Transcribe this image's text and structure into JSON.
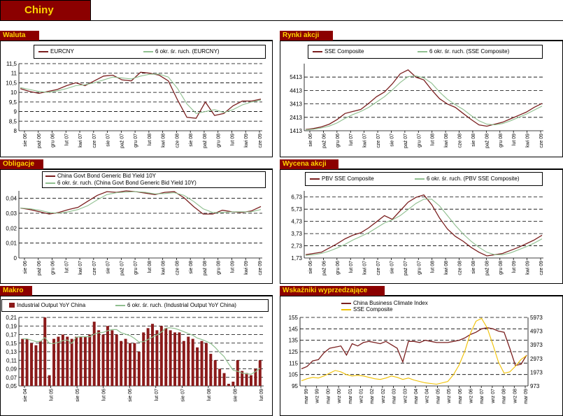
{
  "page": {
    "title": "Chiny"
  },
  "sections": {
    "waluta": "Waluta",
    "rynki": "Rynki akcji",
    "obligacje": "Obligacje",
    "wycena": "Wycena akcji",
    "makro": "Makro",
    "wskazniki": "Wskaźniki wyprzedzające"
  },
  "colors": {
    "brown": "#7a1f1f",
    "green": "#8fbf8f",
    "bar": "#8b1a1a",
    "yellow": "#f0c000",
    "header": "#8b0000",
    "header_text": "#ffd400"
  },
  "chart_data": [
    {
      "id": "waluta",
      "type": "line",
      "series": [
        {
          "name": "EURCNY",
          "values": [
            10.2,
            10.05,
            9.95,
            10.05,
            10.15,
            10.35,
            10.5,
            10.35,
            10.6,
            10.85,
            10.9,
            10.65,
            10.6,
            11.05,
            11.0,
            10.9,
            10.6,
            9.6,
            8.7,
            8.65,
            9.5,
            8.8,
            8.9,
            9.3,
            9.55,
            9.55,
            9.65
          ]
        },
        {
          "name": "6 okr. śr. ruch. (EURCNY)",
          "values": [
            10.25,
            10.15,
            10.05,
            10.0,
            10.08,
            10.2,
            10.35,
            10.4,
            10.5,
            10.65,
            10.8,
            10.75,
            10.7,
            10.85,
            10.95,
            10.95,
            10.8,
            10.2,
            9.4,
            8.9,
            9.0,
            9.1,
            8.95,
            9.1,
            9.35,
            9.5,
            9.6
          ]
        }
      ],
      "ylim": [
        8,
        11.5
      ],
      "yticks": [
        "8",
        "8,5",
        "9",
        "9,5",
        "10",
        "10,5",
        "11",
        "11,5"
      ],
      "xticks": [
        "sie 06",
        "paź 06",
        "gru 06",
        "lut 07",
        "kwi 07",
        "cze 07",
        "sie 07",
        "paź 07",
        "gru 07",
        "lut 08",
        "kwi 08",
        "cze 08",
        "sie 08",
        "paź 08",
        "gru 08",
        "lut 09",
        "kwi 09",
        "cze 09"
      ]
    },
    {
      "id": "rynki",
      "type": "line",
      "series": [
        {
          "name": "SSE Composite",
          "values": [
            1500,
            1580,
            1700,
            1900,
            2250,
            2700,
            2850,
            3000,
            3450,
            3950,
            4300,
            4900,
            5650,
            5950,
            5400,
            5200,
            4450,
            3800,
            3400,
            3150,
            2700,
            2250,
            1850,
            1750,
            1900,
            2050,
            2300,
            2550,
            2800,
            3150,
            3450
          ]
        },
        {
          "name": "6 okr. śr. ruch. (SSE Composite)",
          "values": [
            1480,
            1530,
            1620,
            1760,
            2000,
            2330,
            2620,
            2850,
            3150,
            3550,
            3950,
            4450,
            5000,
            5450,
            5500,
            5350,
            4950,
            4300,
            3750,
            3350,
            3000,
            2550,
            2150,
            1900,
            1850,
            1950,
            2150,
            2400,
            2650,
            2950,
            3250
          ]
        }
      ],
      "ylim": [
        1413,
        6413
      ],
      "yticks": [
        "1413",
        "2413",
        "3413",
        "4413",
        "5413"
      ],
      "xticks": [
        "sie 06",
        "paź 06",
        "gru 06",
        "lut 07",
        "kwi 07",
        "cze 07",
        "sie 07",
        "paź 07",
        "gru 07",
        "lut 08",
        "kwi 08",
        "cze 08",
        "sie 08",
        "paź 08",
        "gru 08",
        "lut 09",
        "kwi 09",
        "cze 09"
      ]
    },
    {
      "id": "obligacje",
      "type": "line",
      "series": [
        {
          "name": "China Govt Bond Generic Bid Yield 10Y",
          "values": [
            0.0335,
            0.0325,
            0.031,
            0.0295,
            0.0305,
            0.0325,
            0.034,
            0.038,
            0.042,
            0.0445,
            0.044,
            0.045,
            0.0445,
            0.0435,
            0.0425,
            0.044,
            0.0445,
            0.0405,
            0.0345,
            0.0295,
            0.0295,
            0.032,
            0.031,
            0.0305,
            0.0315,
            0.0345
          ]
        },
        {
          "name": "6 okr. śr. ruch. (China Govt Bond Generic Bid Yield 10Y)",
          "values": [
            0.0335,
            0.033,
            0.032,
            0.0305,
            0.03,
            0.031,
            0.0325,
            0.035,
            0.039,
            0.0425,
            0.0438,
            0.0442,
            0.0445,
            0.044,
            0.043,
            0.0432,
            0.0438,
            0.042,
            0.038,
            0.033,
            0.0305,
            0.0305,
            0.031,
            0.031,
            0.031,
            0.0325
          ]
        }
      ],
      "ylim": [
        0,
        0.045
      ],
      "yticks": [
        "0",
        "0,01",
        "0,02",
        "0,03",
        "0,04"
      ],
      "xticks": [
        "sie 06",
        "paź 06",
        "gru 06",
        "lut 07",
        "kwi 07",
        "cze 07",
        "sie 07",
        "paź 07",
        "gru 07",
        "lut 08",
        "kwi 08",
        "cze 08",
        "sie 08",
        "paź 08",
        "gru 08",
        "lut 09",
        "kwi 09",
        "cze 09"
      ]
    },
    {
      "id": "wycena",
      "type": "line",
      "series": [
        {
          "name": "PBV SSE Composite",
          "values": [
            2.0,
            2.1,
            2.2,
            2.55,
            2.9,
            3.3,
            3.6,
            3.8,
            4.2,
            4.7,
            5.2,
            4.9,
            5.6,
            6.3,
            6.7,
            6.9,
            6.1,
            5.0,
            4.1,
            3.5,
            3.1,
            2.6,
            2.2,
            1.9,
            2.0,
            2.1,
            2.35,
            2.6,
            2.9,
            3.2,
            3.6
          ]
        },
        {
          "name": "6 okr. śr. ruch. (PBV SSE Composite)",
          "values": [
            1.95,
            2.0,
            2.1,
            2.3,
            2.55,
            2.85,
            3.2,
            3.5,
            3.8,
            4.2,
            4.6,
            4.85,
            5.2,
            5.7,
            6.2,
            6.55,
            6.55,
            6.0,
            5.2,
            4.4,
            3.7,
            3.1,
            2.6,
            2.2,
            2.0,
            2.0,
            2.15,
            2.4,
            2.65,
            2.95,
            3.3
          ]
        }
      ],
      "ylim": [
        1.73,
        7.23
      ],
      "yticks": [
        "1,73",
        "2,73",
        "3,73",
        "4,73",
        "5,73",
        "6,73"
      ],
      "xticks": [
        "sie 06",
        "paź 06",
        "gru 06",
        "lut 07",
        "kwi 07",
        "cze 07",
        "sie 07",
        "paź 07",
        "gru 07",
        "lut 08",
        "kwi 08",
        "cze 08",
        "sie 08",
        "paź 08",
        "gru 08",
        "lut 09",
        "kwi 09",
        "cze 09"
      ]
    },
    {
      "id": "makro",
      "type": "bar",
      "series": [
        {
          "name": "Industrial Output YoY China",
          "values": [
            0.16,
            0.16,
            0.15,
            0.145,
            0.155,
            0.21,
            0.075,
            0.16,
            0.165,
            0.17,
            0.165,
            0.16,
            0.165,
            0.165,
            0.165,
            0.17,
            0.2,
            0.18,
            0.17,
            0.19,
            0.18,
            0.17,
            0.155,
            0.16,
            0.15,
            0.15,
            0.13,
            0.175,
            0.185,
            0.195,
            0.18,
            0.19,
            0.185,
            0.18,
            0.175,
            0.175,
            0.155,
            0.165,
            0.16,
            0.14,
            0.155,
            0.15,
            0.125,
            0.11,
            0.09,
            0.08,
            0.055,
            0.06,
            0.11,
            0.085,
            0.08,
            0.075,
            0.09,
            0.11
          ]
        },
        {
          "name": "6 okr. śr. ruch. (Industrial Output YoY China)"
        }
      ],
      "ylim": [
        0.05,
        0.21
      ],
      "yticks": [
        "0,05",
        "0,07",
        "0,09",
        "0,11",
        "0,13",
        "0,15",
        "0,17",
        "0,19",
        "0,21"
      ],
      "xticks": [
        "sie 04",
        "lut 05",
        "sie 05",
        "lut 06",
        "sie 06",
        "lut 07",
        "sie 07",
        "lut 08",
        "sie 08",
        "lut 09"
      ]
    },
    {
      "id": "wskazniki",
      "type": "line",
      "series": [
        {
          "name": "China Business Climate Index",
          "values": [
            110,
            112,
            117,
            118,
            124,
            128,
            129,
            130,
            122,
            132,
            130,
            133,
            134,
            133,
            132,
            134,
            131,
            128,
            116,
            134,
            134,
            133,
            135,
            134,
            133,
            133,
            133,
            134,
            135,
            137,
            140,
            142,
            145,
            146,
            145,
            143,
            142,
            128,
            113,
            114,
            122
          ]
        },
        {
          "name": "SSE Composite",
          "values": [
            1350,
            1500,
            1600,
            1550,
            1700,
            1900,
            2100,
            2000,
            1800,
            1700,
            1750,
            1700,
            1600,
            1500,
            1450,
            1550,
            1700,
            1600,
            1450,
            1550,
            1400,
            1300,
            1200,
            1150,
            1100,
            1200,
            1300,
            1800,
            2500,
            3500,
            4800,
            5700,
            5900,
            5200,
            4000,
            2700,
            1900,
            2000,
            2400,
            2900,
            3200
          ]
        }
      ],
      "ylim": [
        95,
        155
      ],
      "ylim_right": [
        973,
        5973
      ],
      "yticks": [
        "95",
        "105",
        "115",
        "125",
        "135",
        "145",
        "155"
      ],
      "yticks_right": [
        "973",
        "1973",
        "2973",
        "3973",
        "4973",
        "5973"
      ],
      "xticks": [
        "mar 99",
        "wrz 99",
        "mar 00",
        "wrz 00",
        "mar 01",
        "wrz 01",
        "mar 02",
        "wrz 02",
        "mar 03",
        "wrz 03",
        "mar 04",
        "wrz 04",
        "mar 05",
        "wrz 05",
        "mar 06",
        "wrz 06",
        "mar 07",
        "wrz 07",
        "mar 08",
        "wrz 08",
        "mar 09"
      ]
    }
  ]
}
